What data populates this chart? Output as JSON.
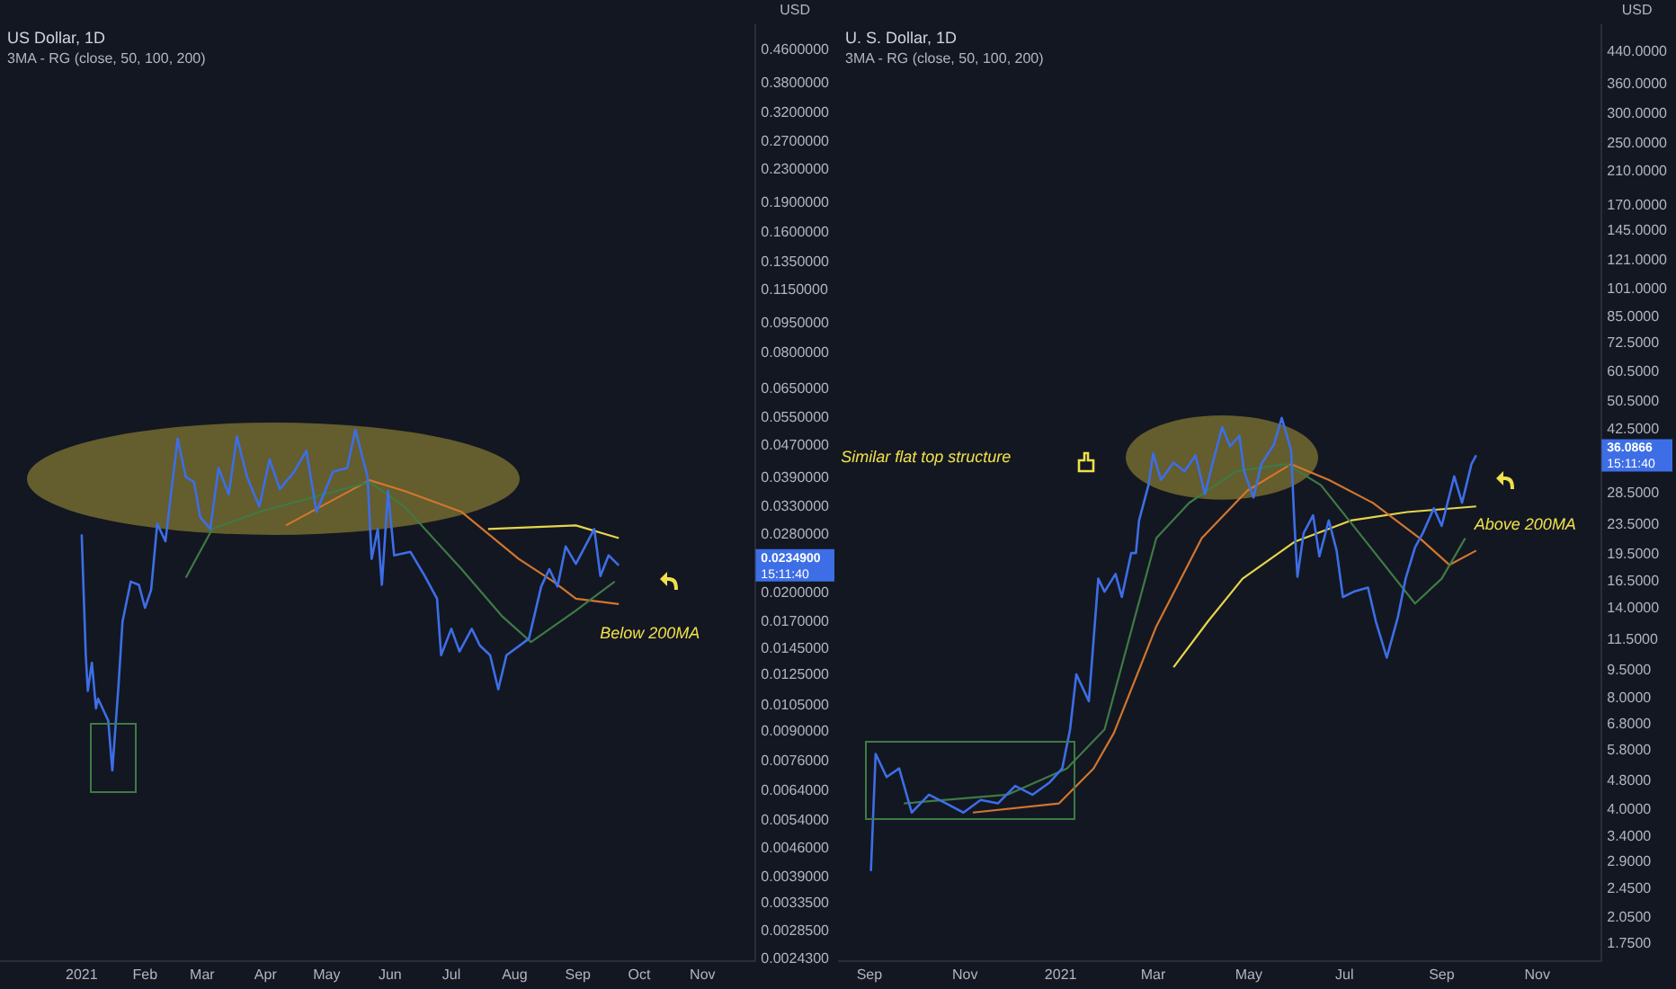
{
  "chart_data": [
    {
      "type": "line",
      "title": "US Dollar, 1D",
      "subtitle": "3MA - RG (close, 50, 100, 200)",
      "ylabel": "USD",
      "log": true,
      "grid": false,
      "xlim": [
        "2020-11-22",
        "2021-11-27"
      ],
      "xticks": [
        {
          "value": "2021-01-01",
          "label": "2021"
        },
        {
          "value": "2021-02-01",
          "label": "Feb"
        },
        {
          "value": "2021-03-01",
          "label": "Mar"
        },
        {
          "value": "2021-04-01",
          "label": "Apr"
        },
        {
          "value": "2021-05-01",
          "label": "May"
        },
        {
          "value": "2021-06-01",
          "label": "Jun"
        },
        {
          "value": "2021-07-01",
          "label": "Jul"
        },
        {
          "value": "2021-08-01",
          "label": "Aug"
        },
        {
          "value": "2021-09-01",
          "label": "Sep"
        },
        {
          "value": "2021-10-01",
          "label": "Oct"
        },
        {
          "value": "2021-11-01",
          "label": "Nov"
        }
      ],
      "ylim": [
        0.0024,
        0.53
      ],
      "yticks": [
        {
          "value": 0.46,
          "label": "0.4600000"
        },
        {
          "value": 0.38,
          "label": "0.3800000"
        },
        {
          "value": 0.32,
          "label": "0.3200000"
        },
        {
          "value": 0.27,
          "label": "0.2700000"
        },
        {
          "value": 0.23,
          "label": "0.2300000"
        },
        {
          "value": 0.19,
          "label": "0.1900000"
        },
        {
          "value": 0.16,
          "label": "0.1600000"
        },
        {
          "value": 0.135,
          "label": "0.1350000"
        },
        {
          "value": 0.115,
          "label": "0.1150000"
        },
        {
          "value": 0.095,
          "label": "0.0950000"
        },
        {
          "value": 0.08,
          "label": "0.0800000"
        },
        {
          "value": 0.065,
          "label": "0.0650000"
        },
        {
          "value": 0.055,
          "label": "0.0550000"
        },
        {
          "value": 0.047,
          "label": "0.0470000"
        },
        {
          "value": 0.039,
          "label": "0.0390000"
        },
        {
          "value": 0.033,
          "label": "0.0330000"
        },
        {
          "value": 0.028,
          "label": "0.0280000"
        },
        {
          "value": 0.02,
          "label": "0.0200000"
        },
        {
          "value": 0.017,
          "label": "0.0170000"
        },
        {
          "value": 0.0145,
          "label": "0.0145000"
        },
        {
          "value": 0.0125,
          "label": "0.0125000"
        },
        {
          "value": 0.0105,
          "label": "0.0105000"
        },
        {
          "value": 0.009,
          "label": "0.0090000"
        },
        {
          "value": 0.0076,
          "label": "0.0076000"
        },
        {
          "value": 0.0064,
          "label": "0.0064000"
        },
        {
          "value": 0.0054,
          "label": "0.0054000"
        },
        {
          "value": 0.0046,
          "label": "0.0046000"
        },
        {
          "value": 0.0039,
          "label": "0.0039000"
        },
        {
          "value": 0.00335,
          "label": "0.0033500"
        },
        {
          "value": 0.00285,
          "label": "0.0028500"
        },
        {
          "value": 0.00243,
          "label": "0.0024300"
        }
      ],
      "annotations": [
        "0.0234900",
        "15:11:40",
        "Below 200MA"
      ],
      "series": [
        {
          "color": "#3d6ee6",
          "x": [
            "2021-01-01",
            "2021-01-03",
            "2021-01-04",
            "2021-01-06",
            "2021-01-08",
            "2021-01-09",
            "2021-01-14",
            "2021-01-16",
            "2021-01-19",
            "2021-01-21",
            "2021-01-25",
            "2021-01-29",
            "2021-02-01",
            "2021-02-04",
            "2021-02-07",
            "2021-02-11",
            "2021-02-13",
            "2021-02-17",
            "2021-02-21",
            "2021-02-25",
            "2021-02-28",
            "2021-03-05",
            "2021-03-09",
            "2021-03-14",
            "2021-03-18",
            "2021-03-23",
            "2021-03-29",
            "2021-04-03",
            "2021-04-08",
            "2021-04-15",
            "2021-04-21",
            "2021-04-26",
            "2021-05-04",
            "2021-05-11",
            "2021-05-15",
            "2021-05-21",
            "2021-05-23",
            "2021-05-26",
            "2021-05-28",
            "2021-05-31",
            "2021-06-03",
            "2021-06-11",
            "2021-06-18",
            "2021-06-24",
            "2021-06-26",
            "2021-07-01",
            "2021-07-05",
            "2021-07-11",
            "2021-07-15",
            "2021-07-20",
            "2021-07-24",
            "2021-07-28",
            "2021-08-08",
            "2021-08-14",
            "2021-08-18",
            "2021-08-22",
            "2021-08-26",
            "2021-08-31",
            "2021-09-09",
            "2021-09-12",
            "2021-09-16",
            "2021-09-21"
          ],
          "values": [
            0.0281,
            0.014,
            0.0114,
            0.0134,
            0.0103,
            0.0109,
            0.0096,
            0.0072,
            0.0117,
            0.017,
            0.0214,
            0.021,
            0.0184,
            0.0204,
            0.0299,
            0.027,
            0.033,
            0.0488,
            0.0391,
            0.038,
            0.0311,
            0.029,
            0.0412,
            0.0354,
            0.0494,
            0.0391,
            0.033,
            0.0433,
            0.0365,
            0.0403,
            0.0455,
            0.032,
            0.0403,
            0.0412,
            0.0514,
            0.0391,
            0.0244,
            0.029,
            0.021,
            0.0361,
            0.0249,
            0.0254,
            0.0221,
            0.0194,
            0.014,
            0.0163,
            0.0143,
            0.0163,
            0.0148,
            0.014,
            0.0115,
            0.014,
            0.0154,
            0.0208,
            0.023,
            0.0208,
            0.0262,
            0.0237,
            0.029,
            0.0221,
            0.0249,
            0.0235
          ]
        },
        {
          "color": "#3f7a45",
          "x": [
            "2021-02-21",
            "2021-03-06",
            "2021-03-29",
            "2021-05-22",
            "2021-06-08",
            "2021-07-06",
            "2021-07-26",
            "2021-08-09",
            "2021-08-31",
            "2021-09-19"
          ],
          "values": [
            0.0219,
            0.029,
            0.032,
            0.038,
            0.033,
            0.023,
            0.0175,
            0.0151,
            0.0181,
            0.0214
          ]
        },
        {
          "color": "#d2762e",
          "x": [
            "2021-04-11",
            "2021-05-22",
            "2021-06-08",
            "2021-07-06",
            "2021-08-03",
            "2021-08-20",
            "2021-08-31",
            "2021-09-21"
          ],
          "values": [
            0.0296,
            0.0384,
            0.0361,
            0.032,
            0.0244,
            0.0214,
            0.0194,
            0.0188
          ]
        },
        {
          "color": "#e6d54a",
          "x": [
            "2021-07-19",
            "2021-08-31",
            "2021-09-21"
          ],
          "values": [
            0.029,
            0.0296,
            0.0275
          ]
        }
      ]
    },
    {
      "type": "line",
      "title": "U. S. Dollar, 1D",
      "subtitle": "3MA - RG (close, 50, 100, 200)",
      "ylabel": "USD",
      "log": true,
      "grid": false,
      "xlim": [
        "2020-08-12",
        "2021-12-12"
      ],
      "xticks": [
        {
          "value": "2020-09-01",
          "label": "Sep"
        },
        {
          "value": "2020-11-01",
          "label": "Nov"
        },
        {
          "value": "2021-01-01",
          "label": "2021"
        },
        {
          "value": "2021-03-01",
          "label": "Mar"
        },
        {
          "value": "2021-05-01",
          "label": "May"
        },
        {
          "value": "2021-07-01",
          "label": "Jul"
        },
        {
          "value": "2021-09-01",
          "label": "Sep"
        },
        {
          "value": "2021-11-01",
          "label": "Nov"
        }
      ],
      "ylim": [
        1.57,
        520
      ],
      "yticks": [
        {
          "value": 440,
          "label": "440.0000"
        },
        {
          "value": 360,
          "label": "360.0000"
        },
        {
          "value": 300,
          "label": "300.0000"
        },
        {
          "value": 250,
          "label": "250.0000"
        },
        {
          "value": 210,
          "label": "210.0000"
        },
        {
          "value": 170,
          "label": "170.0000"
        },
        {
          "value": 145,
          "label": "145.0000"
        },
        {
          "value": 121,
          "label": "121.0000"
        },
        {
          "value": 101,
          "label": "101.0000"
        },
        {
          "value": 85,
          "label": "85.0000"
        },
        {
          "value": 72.5,
          "label": "72.5000"
        },
        {
          "value": 60.5,
          "label": "60.5000"
        },
        {
          "value": 50.5,
          "label": "50.5000"
        },
        {
          "value": 42.5,
          "label": "42.5000"
        },
        {
          "value": 28.5,
          "label": "28.5000"
        },
        {
          "value": 23.5,
          "label": "23.5000"
        },
        {
          "value": 19.5,
          "label": "19.5000"
        },
        {
          "value": 16.5,
          "label": "16.5000"
        },
        {
          "value": 14,
          "label": "14.0000"
        },
        {
          "value": 11.5,
          "label": "11.5000"
        },
        {
          "value": 9.5,
          "label": "9.5000"
        },
        {
          "value": 8,
          "label": "8.0000"
        },
        {
          "value": 6.8,
          "label": "6.8000"
        },
        {
          "value": 5.8,
          "label": "5.8000"
        },
        {
          "value": 4.8,
          "label": "4.8000"
        },
        {
          "value": 4,
          "label": "4.0000"
        },
        {
          "value": 3.4,
          "label": "3.4000"
        },
        {
          "value": 2.9,
          "label": "2.9000"
        },
        {
          "value": 2.45,
          "label": "2.4500"
        },
        {
          "value": 2.05,
          "label": "2.0500"
        },
        {
          "value": 1.75,
          "label": "1.7500"
        }
      ],
      "annotations": [
        "36.0866",
        "15:11:40",
        "Similar flat top structure",
        "Above 200MA"
      ],
      "series": [
        {
          "color": "#3d6ee6",
          "x": [
            "2020-09-02",
            "2020-09-05",
            "2020-09-12",
            "2020-09-20",
            "2020-09-28",
            "2020-10-09",
            "2020-10-20",
            "2020-10-31",
            "2020-11-11",
            "2020-11-22",
            "2020-12-03",
            "2020-12-14",
            "2020-12-25",
            "2021-01-02",
            "2021-01-07",
            "2021-01-11",
            "2021-01-19",
            "2021-01-25",
            "2021-01-29",
            "2021-02-05",
            "2021-02-09",
            "2021-02-15",
            "2021-02-18",
            "2021-02-20",
            "2021-02-26",
            "2021-03-01",
            "2021-03-06",
            "2021-03-14",
            "2021-03-21",
            "2021-03-28",
            "2021-04-03",
            "2021-04-08",
            "2021-04-14",
            "2021-04-19",
            "2021-04-25",
            "2021-04-28",
            "2021-05-04",
            "2021-05-09",
            "2021-05-17",
            "2021-05-22",
            "2021-05-28",
            "2021-05-30",
            "2021-06-01",
            "2021-06-05",
            "2021-06-11",
            "2021-06-15",
            "2021-06-21",
            "2021-06-26",
            "2021-06-30",
            "2021-07-07",
            "2021-07-16",
            "2021-07-21",
            "2021-07-28",
            "2021-08-04",
            "2021-08-09",
            "2021-08-15",
            "2021-08-20",
            "2021-08-27",
            "2021-09-01",
            "2021-09-09",
            "2021-09-14",
            "2021-09-20",
            "2021-09-23"
          ],
          "values": [
            2.74,
            5.67,
            4.91,
            5.18,
            3.94,
            4.4,
            4.17,
            3.94,
            4.26,
            4.17,
            4.65,
            4.4,
            4.75,
            5.18,
            6.6,
            9.28,
            7.86,
            16.8,
            15.5,
            17.3,
            15,
            19.7,
            19.7,
            24.1,
            30,
            36.5,
            31,
            34.5,
            32.7,
            36.1,
            28.4,
            34.5,
            43,
            38.2,
            40.8,
            32.7,
            27.8,
            34.2,
            38.6,
            45.5,
            37.3,
            24.1,
            17,
            22.3,
            24.9,
            19.3,
            24.1,
            20,
            15,
            15.5,
            15.9,
            12.9,
            10.3,
            13.2,
            16.8,
            20.4,
            22.3,
            26,
            23.3,
            31.7,
            26.9,
            34.2,
            36.1
          ]
        },
        {
          "color": "#3f7a45",
          "x": [
            "2020-09-23",
            "2020-11-28",
            "2021-01-05",
            "2021-01-29",
            "2021-03-03",
            "2021-03-24",
            "2021-04-23",
            "2021-05-25",
            "2021-06-16",
            "2021-07-13",
            "2021-08-15",
            "2021-09-01",
            "2021-09-16"
          ],
          "values": [
            4.17,
            4.4,
            5.18,
            6.6,
            21.6,
            26.9,
            32.7,
            34.2,
            30,
            21.6,
            14.4,
            16.8,
            21.6
          ]
        },
        {
          "color": "#d2762e",
          "x": [
            "2020-11-06",
            "2020-12-31",
            "2021-01-22",
            "2021-02-04",
            "2021-03-03",
            "2021-04-01",
            "2021-04-30",
            "2021-05-28",
            "2021-06-21",
            "2021-07-19",
            "2021-08-18",
            "2021-09-06",
            "2021-09-23"
          ],
          "values": [
            3.94,
            4.17,
            5.18,
            6.46,
            12.5,
            21.6,
            29,
            34.2,
            31,
            26.9,
            21.6,
            18.3,
            20
          ]
        },
        {
          "color": "#e6d54a",
          "x": [
            "2021-03-14",
            "2021-04-05",
            "2021-04-27",
            "2021-05-30",
            "2021-07-05",
            "2021-08-10",
            "2021-09-23"
          ],
          "values": [
            9.7,
            12.9,
            16.8,
            21.1,
            24.1,
            25.4,
            26.3
          ]
        }
      ]
    }
  ]
}
